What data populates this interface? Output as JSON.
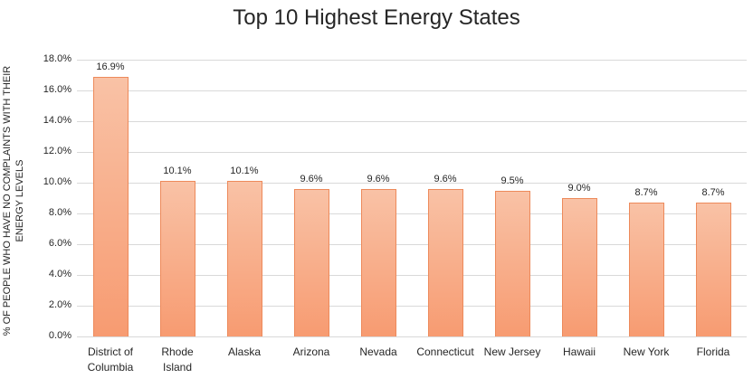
{
  "chart_data": {
    "type": "bar",
    "title": "Top 10 Highest Energy States",
    "ylabel": "% OF PEOPLE WHO HAVE NO COMPLAINTS WITH THEIR ENERGY LEVELS",
    "xlabel": "",
    "categories": [
      "District of Columbia",
      "Rhode Island",
      "Alaska",
      "Arizona",
      "Nevada",
      "Connecticut",
      "New Jersey",
      "Hawaii",
      "New York",
      "Florida"
    ],
    "values": [
      16.9,
      10.1,
      10.1,
      9.6,
      9.6,
      9.6,
      9.5,
      9.0,
      8.7,
      8.7
    ],
    "value_labels": [
      "16.9%",
      "10.1%",
      "10.1%",
      "9.6%",
      "9.6%",
      "9.6%",
      "9.5%",
      "9.0%",
      "8.7%",
      "8.7%"
    ],
    "ylim": [
      0,
      18
    ],
    "ytick_step": 2,
    "ytick_labels": [
      "0.0%",
      "2.0%",
      "4.0%",
      "6.0%",
      "8.0%",
      "10.0%",
      "12.0%",
      "14.0%",
      "16.0%",
      "18.0%"
    ],
    "grid": true,
    "legend": "none",
    "colors": {
      "bar_fill_top": "#F9C2A6",
      "bar_fill_bottom": "#F79B71",
      "bar_border": "#ED8A5B",
      "gridline": "#D9D9D9",
      "axis_line": "#D9D9D9",
      "text": "#262626"
    }
  }
}
